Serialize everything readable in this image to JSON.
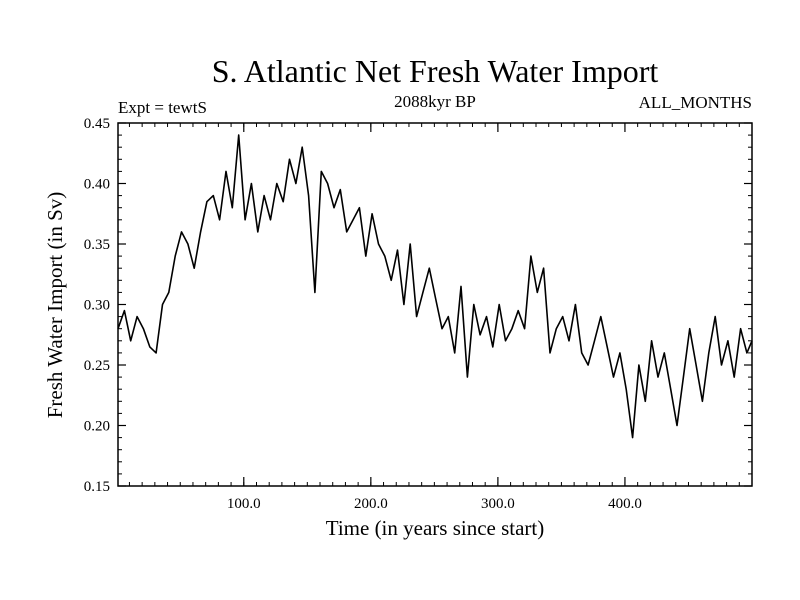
{
  "chart_data": {
    "type": "line",
    "title": "S. Atlantic Net Fresh Water Import",
    "subtitle_left": "Expt = tewtS",
    "subtitle_center": "2088kyr BP",
    "subtitle_right": "ALL_MONTHS",
    "xlabel": "Time (in years since start)",
    "ylabel": "Fresh Water Import (in Sv)",
    "xlim": [
      1,
      500
    ],
    "ylim": [
      0.15,
      0.45
    ],
    "x_ticks": [
      100,
      200,
      300,
      400
    ],
    "x_tick_labels": [
      "100.0",
      "200.0",
      "300.0",
      "400.0"
    ],
    "y_ticks": [
      0.15,
      0.2,
      0.25,
      0.3,
      0.35,
      0.4,
      0.45
    ],
    "y_tick_labels": [
      "0.15",
      "0.20",
      "0.25",
      "0.30",
      "0.35",
      "0.40",
      "0.45"
    ],
    "series": [
      {
        "name": "fresh_water_import",
        "color": "#000000",
        "x": [
          1,
          6,
          11,
          16,
          21,
          26,
          31,
          36,
          41,
          46,
          51,
          56,
          61,
          66,
          71,
          76,
          81,
          86,
          91,
          96,
          101,
          106,
          111,
          116,
          121,
          126,
          131,
          136,
          141,
          146,
          151,
          156,
          161,
          166,
          171,
          176,
          181,
          186,
          191,
          196,
          201,
          206,
          211,
          216,
          221,
          226,
          231,
          236,
          241,
          246,
          251,
          256,
          261,
          266,
          271,
          276,
          281,
          286,
          291,
          296,
          301,
          306,
          311,
          316,
          321,
          326,
          331,
          336,
          341,
          346,
          351,
          356,
          361,
          366,
          371,
          376,
          381,
          386,
          391,
          396,
          401,
          406,
          411,
          416,
          421,
          426,
          431,
          436,
          441,
          446,
          451,
          456,
          461,
          466,
          471,
          476,
          481,
          486,
          491,
          496,
          500
        ],
        "y": [
          0.28,
          0.295,
          0.27,
          0.29,
          0.28,
          0.265,
          0.26,
          0.3,
          0.31,
          0.34,
          0.36,
          0.35,
          0.33,
          0.36,
          0.385,
          0.39,
          0.37,
          0.41,
          0.38,
          0.44,
          0.37,
          0.4,
          0.36,
          0.39,
          0.37,
          0.4,
          0.385,
          0.42,
          0.4,
          0.43,
          0.39,
          0.31,
          0.41,
          0.4,
          0.38,
          0.395,
          0.36,
          0.37,
          0.38,
          0.34,
          0.375,
          0.35,
          0.34,
          0.32,
          0.345,
          0.3,
          0.35,
          0.29,
          0.31,
          0.33,
          0.305,
          0.28,
          0.29,
          0.26,
          0.315,
          0.24,
          0.3,
          0.275,
          0.29,
          0.265,
          0.3,
          0.27,
          0.28,
          0.295,
          0.28,
          0.34,
          0.31,
          0.33,
          0.26,
          0.28,
          0.29,
          0.27,
          0.3,
          0.26,
          0.25,
          0.27,
          0.29,
          0.265,
          0.24,
          0.26,
          0.23,
          0.19,
          0.25,
          0.22,
          0.27,
          0.24,
          0.26,
          0.23,
          0.2,
          0.24,
          0.28,
          0.25,
          0.22,
          0.26,
          0.29,
          0.25,
          0.27,
          0.24,
          0.28,
          0.26,
          0.27
        ]
      }
    ]
  }
}
